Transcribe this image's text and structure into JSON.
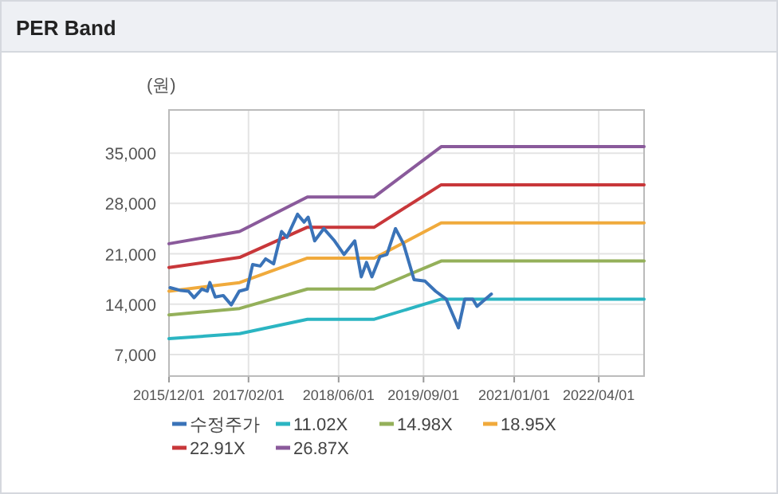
{
  "chart_data": {
    "type": "line",
    "title": "PER Band",
    "ylabel": "(원)",
    "xlim": [
      "2015-12-01",
      "2022-12-01"
    ],
    "xticks": [
      {
        "value": "2015-12-01",
        "label": "2015/12/01"
      },
      {
        "value": "2017-02-01",
        "label": "2017/02/01"
      },
      {
        "value": "2018-06-01",
        "label": "2018/06/01"
      },
      {
        "value": "2019-09-01",
        "label": "2019/09/01"
      },
      {
        "value": "2021-01-01",
        "label": "2021/01/01"
      },
      {
        "value": "2022-04-01",
        "label": "2022/04/01"
      }
    ],
    "ylim": [
      4000,
      41000
    ],
    "yticks": [
      {
        "value": 7000,
        "label": "7,000"
      },
      {
        "value": 14000,
        "label": "14,000"
      },
      {
        "value": 21000,
        "label": "21,000"
      },
      {
        "value": 28000,
        "label": "28,000"
      },
      {
        "value": 35000,
        "label": "35,000"
      }
    ],
    "grid": true,
    "legend": "bottom",
    "line_style": "solid",
    "series": [
      {
        "name": "수정주가",
        "color": "#3a73b8",
        "x": [
          "2015-12-07",
          "2016-02-03",
          "2016-03-15",
          "2016-04-14",
          "2016-05-26",
          "2016-06-24",
          "2016-07-08",
          "2016-08-06",
          "2016-09-18",
          "2016-10-31",
          "2016-12-13",
          "2017-01-25",
          "2017-02-23",
          "2017-04-05",
          "2017-05-04",
          "2017-06-16",
          "2017-07-29",
          "2017-08-27",
          "2017-10-23",
          "2017-11-27",
          "2017-12-19",
          "2018-01-23",
          "2018-03-13",
          "2018-05-10",
          "2018-06-30",
          "2018-08-27",
          "2018-10-01",
          "2018-10-29",
          "2018-11-27",
          "2019-01-09",
          "2019-02-16",
          "2019-04-03",
          "2019-05-16",
          "2019-07-12",
          "2019-09-09",
          "2019-11-05",
          "2020-01-01",
          "2020-03-07",
          "2020-04-10",
          "2020-05-23",
          "2020-06-15",
          "2020-08-31"
        ],
        "values": [
          16300,
          15900,
          15800,
          14900,
          16100,
          15800,
          17000,
          15000,
          15200,
          13900,
          15800,
          16100,
          19500,
          19300,
          20300,
          19600,
          24100,
          23300,
          26500,
          25400,
          26100,
          22800,
          24500,
          22800,
          20900,
          22800,
          17800,
          19800,
          17800,
          20600,
          20900,
          24500,
          22400,
          17400,
          17200,
          15800,
          14700,
          10700,
          14700,
          14700,
          13700,
          15400
        ]
      },
      {
        "name": "11.02X",
        "color": "#2bb5c2",
        "x": [
          "2015-12-01",
          "2016-12-15",
          "2017-12-15",
          "2018-12-10",
          "2019-12-05",
          "2022-12-01"
        ],
        "values": [
          9200,
          9900,
          11900,
          11900,
          14700,
          14700
        ]
      },
      {
        "name": "14.98X",
        "color": "#94b05a",
        "x": [
          "2015-12-01",
          "2016-12-15",
          "2017-12-15",
          "2018-12-10",
          "2019-12-05",
          "2022-12-01"
        ],
        "values": [
          12500,
          13400,
          16100,
          16100,
          20000,
          20000
        ]
      },
      {
        "name": "18.95X",
        "color": "#f0aa3c",
        "x": [
          "2015-12-01",
          "2016-12-15",
          "2017-12-15",
          "2018-12-10",
          "2019-12-05",
          "2022-12-01"
        ],
        "values": [
          15800,
          17000,
          20400,
          20400,
          25300,
          25300
        ]
      },
      {
        "name": "22.91X",
        "color": "#c8373a",
        "x": [
          "2015-12-01",
          "2016-12-15",
          "2017-12-15",
          "2018-12-10",
          "2019-12-05",
          "2022-12-01"
        ],
        "values": [
          19100,
          20500,
          24700,
          24700,
          30600,
          30600
        ]
      },
      {
        "name": "26.87X",
        "color": "#8a5a9b",
        "x": [
          "2015-12-01",
          "2016-12-15",
          "2017-12-15",
          "2018-12-10",
          "2019-12-05",
          "2022-12-01"
        ],
        "values": [
          22400,
          24100,
          28900,
          28900,
          35900,
          35900
        ]
      }
    ]
  }
}
